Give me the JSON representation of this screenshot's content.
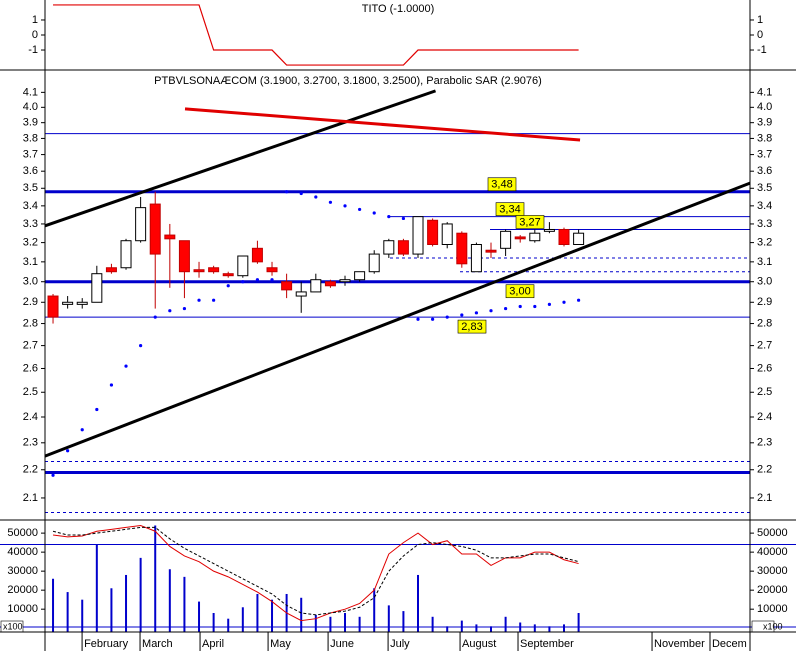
{
  "chart_data": [
    {
      "type": "line",
      "title": "TITO (-1.0000)",
      "color": "#e00000",
      "values": [
        2,
        2,
        2,
        2,
        2,
        2,
        2,
        2,
        2,
        2,
        2,
        -1,
        -1,
        -1,
        -1,
        -1,
        -2,
        -2,
        -2,
        -2,
        -2,
        -2,
        -2,
        -2,
        -2,
        -1,
        -1,
        -1,
        -1,
        -1,
        -1,
        -1,
        -1,
        -1,
        -1,
        -1,
        -1
      ],
      "ylim": [
        -2.33,
        2.33
      ],
      "yticks": [
        1,
        0,
        -1
      ],
      "xlim": [
        -0.55,
        47.74
      ]
    },
    {
      "type": "candlestick",
      "title": "PTBVLSONAÆCOM (3.1900, 3.2700, 3.1800, 3.2500), Parabolic SAR (2.9076)",
      "log": true,
      "ylim": [
        2.025,
        4.24
      ],
      "xlim": [
        -0.55,
        47.74
      ],
      "yticks": [
        4.1,
        {
          "value": 4,
          "label": "4.0"
        },
        3.9,
        3.8,
        3.7,
        3.6,
        3.5,
        3.4,
        3.3,
        3.2,
        3.1,
        {
          "value": 3,
          "label": "3.0"
        },
        2.9,
        2.8,
        2.7,
        2.6,
        2.5,
        2.4,
        2.3,
        2.2,
        2.1
      ],
      "up_color": "#ffffff",
      "down_color": "#ff0000",
      "open": [
        2.93,
        2.89,
        2.89,
        2.9,
        3.07,
        3.07,
        3.21,
        3.41,
        3.24,
        3.21,
        3.06,
        3.07,
        3.04,
        3.03,
        3.17,
        3.07,
        3.0,
        2.93,
        2.95,
        3.0,
        3.0,
        3.01,
        3.05,
        3.14,
        3.21,
        3.14,
        3.32,
        3.19,
        3.25,
        3.05,
        3.16,
        3.17,
        3.23,
        3.21,
        3.26,
        3.27,
        3.19
      ],
      "high": [
        2.94,
        2.93,
        2.92,
        3.08,
        3.09,
        3.22,
        3.45,
        3.48,
        3.3,
        3.21,
        3.1,
        3.08,
        3.05,
        3.13,
        3.21,
        3.1,
        3.04,
        3.0,
        3.04,
        3.01,
        3.03,
        3.05,
        3.16,
        3.22,
        3.22,
        3.34,
        3.33,
        3.31,
        3.26,
        3.2,
        3.2,
        3.27,
        3.24,
        3.27,
        3.31,
        3.28,
        3.27
      ],
      "low": [
        2.8,
        2.87,
        2.87,
        2.9,
        3.04,
        3.06,
        3.2,
        2.87,
        2.97,
        2.92,
        3.02,
        3.04,
        3.02,
        3.02,
        3.09,
        3.03,
        2.92,
        2.85,
        2.95,
        2.97,
        2.98,
        3.0,
        3.04,
        3.12,
        3.13,
        3.12,
        3.18,
        3.17,
        3.07,
        3.05,
        3.12,
        3.13,
        3.2,
        3.2,
        3.25,
        3.18,
        3.19
      ],
      "close": [
        2.83,
        2.9,
        2.9,
        3.04,
        3.05,
        3.21,
        3.39,
        3.14,
        3.22,
        3.05,
        3.05,
        3.05,
        3.03,
        3.13,
        3.1,
        3.05,
        2.96,
        2.95,
        3.01,
        2.98,
        3.01,
        3.05,
        3.14,
        3.21,
        3.14,
        3.34,
        3.19,
        3.3,
        3.09,
        3.19,
        3.15,
        3.26,
        3.22,
        3.25,
        3.27,
        3.19,
        3.25
      ],
      "sar": {
        "color": "#0000ff",
        "values": [
          2.18,
          2.27,
          2.35,
          2.43,
          2.53,
          2.61,
          2.7,
          2.83,
          2.86,
          2.87,
          2.91,
          2.91,
          2.98,
          3.0,
          3.01,
          3.01,
          3.48,
          3.47,
          3.45,
          3.42,
          3.4,
          3.38,
          3.36,
          3.34,
          3.33,
          2.82,
          2.82,
          2.83,
          2.84,
          2.85,
          2.86,
          2.87,
          2.88,
          2.88,
          2.89,
          2.9,
          2.91
        ]
      },
      "hlines": [
        {
          "value": 3.83,
          "color": "#0000cc",
          "style": "thin"
        },
        {
          "value": 3.48,
          "color": "#0000cc",
          "style": "thick",
          "label": "3,48"
        },
        {
          "value": 3.34,
          "color": "#0000cc",
          "style": "thin",
          "label": "3,34"
        },
        {
          "value": 3.27,
          "color": "#0000cc",
          "style": "thin",
          "label": "3,27"
        },
        {
          "value": 3.12,
          "color": "#0000cc",
          "style": "dashed"
        },
        {
          "value": 3.05,
          "color": "#0000cc",
          "style": "dashed"
        },
        {
          "value": 3.0,
          "color": "#0000cc",
          "style": "thick",
          "label": "3,00"
        },
        {
          "value": 2.83,
          "color": "#0000cc",
          "style": "thin",
          "label": "2,83"
        },
        {
          "value": 2.23,
          "color": "#0000cc",
          "style": "dashed"
        },
        {
          "value": 2.19,
          "color": "#0000cc",
          "style": "thick"
        },
        {
          "value": 2.05,
          "color": "#0000cc",
          "style": "dashed"
        }
      ],
      "trendlines": [
        {
          "color": "#000000",
          "x": [
            -0.55,
            26.2
          ],
          "y": [
            3.29,
            4.11
          ]
        },
        {
          "color": "#000000",
          "x": [
            -0.55,
            47.74
          ],
          "y": [
            2.25,
            3.53
          ]
        },
        {
          "color": "#e00000",
          "x": [
            9.04,
            36.1
          ],
          "y": [
            3.99,
            3.79
          ]
        }
      ]
    },
    {
      "type": "bar",
      "unit_label": "x100",
      "color": "#0000cc",
      "ylim": [
        -2000,
        55850
      ],
      "yticks": [
        50000,
        40000,
        30000,
        20000,
        10000
      ],
      "xlim": [
        -0.55,
        47.74
      ],
      "values": [
        26000,
        19000,
        15000,
        44000,
        21000,
        28000,
        37000,
        54000,
        31000,
        27000,
        14000,
        8000,
        5000,
        11000,
        18000,
        15000,
        18000,
        16000,
        7000,
        6000,
        8000,
        6000,
        21000,
        12000,
        9000,
        28000,
        6000,
        1000,
        4000,
        2000,
        1000,
        6000,
        3000,
        2000,
        1000,
        2000,
        8000
      ],
      "lines": [
        {
          "color": "#e00000",
          "style": "solid",
          "values": [
            49000,
            48000,
            48500,
            51000,
            52000,
            53000,
            54000,
            51000,
            43000,
            38000,
            35000,
            30000,
            27000,
            23000,
            19000,
            14000,
            8000,
            4000,
            5000,
            8000,
            10000,
            13000,
            20000,
            39000,
            45000,
            50000,
            44000,
            46000,
            39000,
            39000,
            33000,
            37000,
            37000,
            40000,
            40000,
            36000,
            34000
          ]
        },
        {
          "color": "#000000",
          "style": "dashed",
          "values": [
            51000,
            49000,
            49000,
            50000,
            51000,
            52000,
            53000,
            53000,
            47000,
            42000,
            38000,
            34000,
            30000,
            26000,
            22000,
            18000,
            12000,
            8000,
            7000,
            8000,
            9000,
            11000,
            16000,
            30000,
            38000,
            44000,
            45000,
            44000,
            43000,
            41000,
            37000,
            37000,
            38000,
            39000,
            39000,
            37000,
            35000
          ]
        }
      ],
      "hlines": [
        {
          "value": 44000,
          "color": "#0000cc"
        }
      ],
      "xticks": [
        {
          "value": 1.99,
          "label": "February"
        },
        {
          "value": 5.96,
          "label": "March"
        },
        {
          "value": 10.07,
          "label": "April"
        },
        {
          "value": 14.73,
          "label": "May"
        },
        {
          "value": 18.84,
          "label": "June"
        },
        {
          "value": 22.95,
          "label": "July"
        },
        {
          "value": 27.88,
          "label": "August"
        },
        {
          "value": 31.85,
          "label": "September"
        },
        {
          "value": 41.03,
          "label": "November"
        },
        {
          "value": 45.0,
          "label": "Decem"
        }
      ]
    }
  ]
}
